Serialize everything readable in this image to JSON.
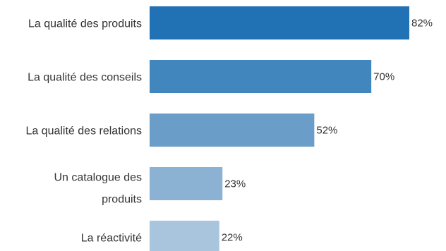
{
  "chart_data": {
    "type": "bar",
    "orientation": "horizontal",
    "categories": [
      "La qualité des produits",
      "La qualité des conseils",
      "La qualité des relations",
      "Un catalogue des produits",
      "La réactivité"
    ],
    "category_lines": [
      [
        "La qualité des produits"
      ],
      [
        "La qualité des conseils"
      ],
      [
        "La qualité des relations"
      ],
      [
        "Un catalogue des",
        "produits"
      ],
      [
        "La réactivité"
      ]
    ],
    "values": [
      82,
      70,
      52,
      23,
      22
    ],
    "value_labels": [
      "82%",
      "70%",
      "52%",
      "23%",
      "22%"
    ],
    "colors": [
      "#2171b5",
      "#4187be",
      "#6a9ec9",
      "#8bb1d3",
      "#a9c5de"
    ],
    "xlim": [
      0,
      100
    ],
    "grid": false,
    "legend": "none"
  }
}
